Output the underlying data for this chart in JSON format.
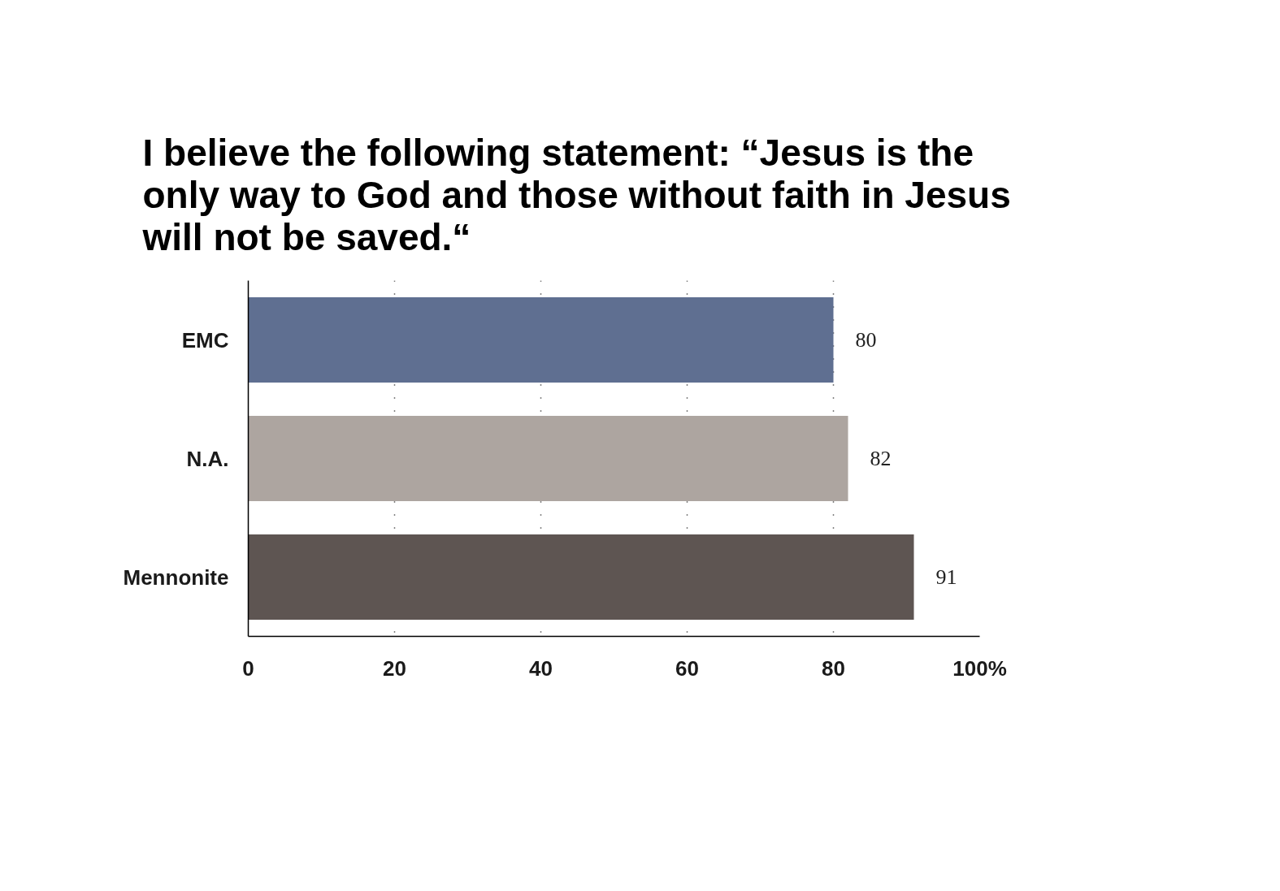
{
  "chart_data": {
    "type": "bar",
    "orientation": "horizontal",
    "title": "I believe the following statement: “Jesus is the only way to God and those without faith in Jesus will not be saved.“",
    "categories": [
      "EMC",
      "N.A.",
      "Mennonite"
    ],
    "values": [
      80,
      82,
      91
    ],
    "colors": [
      "#5f6f91",
      "#ada5a0",
      "#5e5552"
    ],
    "xlim": [
      0,
      100
    ],
    "xticks": [
      0,
      20,
      40,
      60,
      80,
      {
        "value": 100,
        "label": "100%"
      }
    ],
    "grid": "x",
    "data_labels": true
  }
}
